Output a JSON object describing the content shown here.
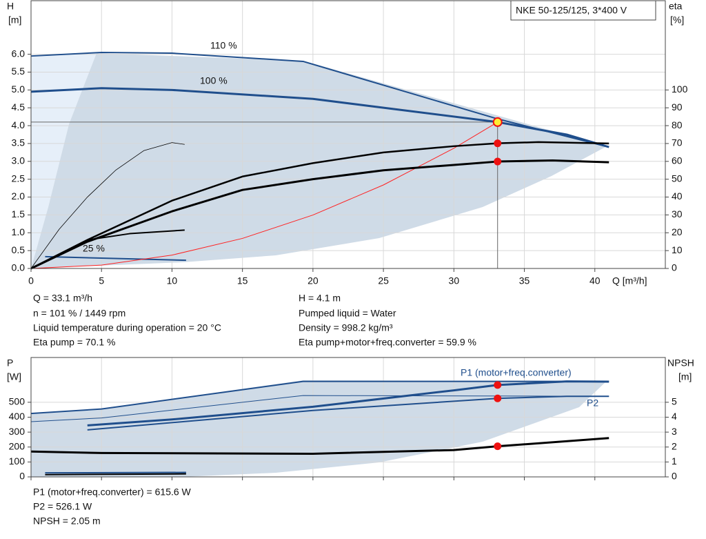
{
  "model": "NKE 50-125/125, 3*400 V",
  "chart_data": [
    {
      "type": "line",
      "ylabel": "H",
      "yunit": "[m]",
      "y2label": "eta",
      "y2unit": "[%]",
      "xlabel": "Q [m³/h]",
      "xlim": [
        0,
        45
      ],
      "ylim": [
        0,
        7.5
      ],
      "y2lim": [
        0,
        150
      ],
      "xticks": [
        0,
        5,
        10,
        15,
        20,
        25,
        30,
        35,
        40
      ],
      "yticks": [
        {
          "value": 0,
          "label": "0.0"
        },
        0.5,
        {
          "value": 1,
          "label": "1.0"
        },
        1.5,
        {
          "value": 2,
          "label": "2.0"
        },
        2.5,
        {
          "value": 3,
          "label": "3.0"
        },
        3.5,
        {
          "value": 4,
          "label": "4.0"
        },
        4.5,
        {
          "value": 5,
          "label": "5.0"
        },
        5.5,
        {
          "value": 6,
          "label": "6.0"
        }
      ],
      "y2ticks": [
        0,
        10,
        20,
        30,
        40,
        50,
        60,
        70,
        80,
        90,
        100
      ],
      "grid": true,
      "series": [
        {
          "name": "110 %",
          "color": "#1f4e8c",
          "line_width": 2,
          "x": [
            0,
            5,
            10,
            19.3,
            33,
            41
          ],
          "values": [
            5.95,
            6.05,
            6.03,
            5.8,
            4.2,
            3.4
          ]
        },
        {
          "name": "100 %",
          "color": "#1f4e8c",
          "line_width": 3,
          "x": [
            0,
            5,
            10,
            20,
            33.1,
            38,
            41
          ],
          "values": [
            4.95,
            5.05,
            5.0,
            4.75,
            4.1,
            3.75,
            3.4
          ]
        },
        {
          "name": "25 %",
          "color": "#1f4e8c",
          "line_width": 2,
          "x": [
            1,
            11
          ],
          "values": [
            0.33,
            0.23
          ]
        },
        {
          "color": "#ff2020",
          "line_width": 1,
          "x": [
            0,
            5,
            10,
            15,
            20,
            25,
            30,
            33.1
          ],
          "values": [
            0,
            0.094,
            0.374,
            0.842,
            1.497,
            2.339,
            3.368,
            4.1
          ]
        },
        {
          "color": "#000000",
          "line_width": 2.5,
          "axis": "y2",
          "x": [
            0,
            4,
            10,
            15,
            20,
            25,
            30,
            33.1,
            36,
            41
          ],
          "values": [
            0,
            16,
            38,
            51.5,
            59,
            65,
            68.5,
            70.1,
            70.8,
            70
          ]
        },
        {
          "color": "#000000",
          "line_width": 3,
          "axis": "y2",
          "x": [
            0,
            4,
            10,
            15,
            20,
            25,
            30,
            33.1,
            37,
            41
          ],
          "values": [
            0,
            15,
            32,
            44,
            50,
            55,
            58,
            59.9,
            60.5,
            59.5
          ]
        },
        {
          "color": "#000000",
          "line_width": 0.8,
          "axis": "y2",
          "x": [
            0,
            2,
            4,
            6,
            8,
            10,
            10.9
          ],
          "values": [
            0,
            22,
            40,
            55,
            66,
            70.5,
            69.5
          ]
        },
        {
          "color": "#000000",
          "line_width": 2,
          "axis": "y2",
          "x": [
            0,
            4,
            7,
            10.9
          ],
          "values": [
            0,
            16,
            19.5,
            21.5
          ]
        }
      ],
      "operating_point": {
        "x": 33.1,
        "h": 4.1,
        "eta": [
          70.1,
          59.9
        ]
      },
      "readouts": [
        [
          "Q = 33.1 m³/h",
          "n = 101 % / 1449 rpm",
          "Liquid temperature during operation = 20 °C",
          "Eta pump = 70.1 %"
        ],
        [
          "H = 4.1 m",
          "Pumped liquid = Water",
          "Density = 998.2 kg/m³",
          "Eta pump+motor+freq.converter = 59.9 %"
        ]
      ]
    },
    {
      "type": "line",
      "ylabel": "P",
      "yunit": "[W]",
      "y2label": "NPSH",
      "y2unit": "[m]",
      "xlim": [
        0,
        45
      ],
      "ylim": [
        0,
        800
      ],
      "y2lim": [
        0,
        8
      ],
      "xticks": [
        0,
        5,
        10,
        15,
        20,
        25,
        30,
        35,
        40
      ],
      "yticks": [
        0,
        100,
        200,
        300,
        400,
        500
      ],
      "y2ticks": [
        0,
        1,
        2,
        3,
        4,
        5
      ],
      "grid": true,
      "series": [
        {
          "color": "#1f4e8c",
          "line_width": 2,
          "x": [
            0,
            5,
            19.3,
            41
          ],
          "values": [
            425,
            455,
            640,
            640
          ]
        },
        {
          "name": "P1 (motor+freq.converter)",
          "color": "#1f4e8c",
          "line_width": 3,
          "x": [
            4,
            10,
            20,
            30,
            33.1,
            38,
            41
          ],
          "values": [
            345,
            385,
            470,
            580,
            615.6,
            640,
            638
          ]
        },
        {
          "color": "#1f4e8c",
          "line_width": 1,
          "x": [
            0,
            5,
            19.3,
            41
          ],
          "values": [
            370,
            395,
            545,
            540
          ]
        },
        {
          "name": "P2",
          "color": "#1f4e8c",
          "line_width": 2,
          "x": [
            4,
            20,
            33.1,
            38,
            41
          ],
          "values": [
            315,
            445,
            526.1,
            540,
            540
          ]
        },
        {
          "color": "#1f4e8c",
          "line_width": 2,
          "x": [
            1,
            11
          ],
          "values": [
            27,
            30
          ]
        },
        {
          "color": "#000000",
          "line_width": 2,
          "x": [
            1,
            11
          ],
          "values": [
            15,
            20
          ]
        },
        {
          "color": "#000000",
          "line_width": 3,
          "axis": "y2",
          "x": [
            0,
            5,
            20,
            30,
            33.1,
            41
          ],
          "values": [
            1.7,
            1.6,
            1.55,
            1.8,
            2.05,
            2.6
          ]
        }
      ],
      "operating_point": {
        "x": 33.1,
        "p": [
          615.6,
          526.1
        ],
        "npsh": 2.05
      },
      "readouts": [
        "P1 (motor+freq.converter) = 615.6 W",
        "P2 = 526.1 W",
        "NPSH = 2.05 m"
      ]
    }
  ]
}
